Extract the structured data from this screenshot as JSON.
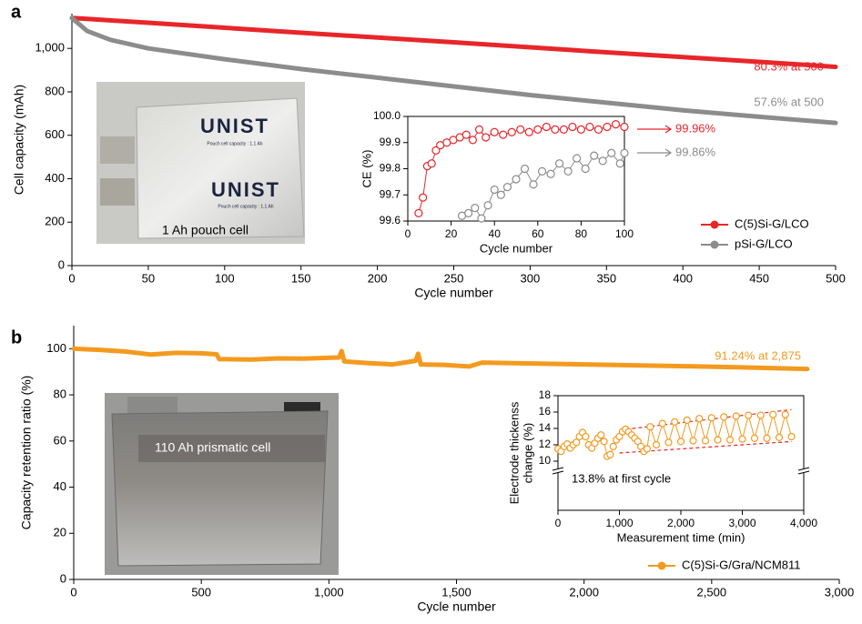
{
  "chart_data": [
    {
      "type": "line",
      "panel": "a",
      "xlabel": "Cycle number",
      "ylabel": "Cell capacity (mAh)",
      "xlim": [
        0,
        500
      ],
      "ylim": [
        0,
        1160
      ],
      "xticks": [
        0,
        50,
        100,
        150,
        200,
        250,
        300,
        350,
        400,
        450,
        500
      ],
      "yticks": [
        0,
        200,
        400,
        600,
        800,
        {
          "value": 1000,
          "label": "1,000"
        }
      ],
      "x": [
        0,
        10,
        25,
        50,
        100,
        150,
        200,
        250,
        300,
        350,
        400,
        450,
        500
      ],
      "series": [
        {
          "name": "C(5)Si-G/LCO",
          "color": "#e8262a",
          "values": [
            1140,
            1136,
            1129,
            1118,
            1095,
            1072,
            1050,
            1028,
            1005,
            982,
            960,
            938,
            915
          ]
        },
        {
          "name": "pSi-G/LCO",
          "color": "#8c8c8c",
          "values": [
            1140,
            1080,
            1040,
            1000,
            950,
            905,
            865,
            825,
            785,
            750,
            715,
            685,
            657
          ]
        }
      ],
      "legend": "lower right",
      "annotations": [
        {
          "text": "80.3% at 500",
          "color": "#e8262a"
        },
        {
          "text": "57.6% at 500",
          "color": "#8c8c8c"
        }
      ]
    },
    {
      "type": "line",
      "markers": true,
      "xlabel": "Cycle number",
      "ylabel": "CE (%)",
      "xlim": [
        0,
        100
      ],
      "ylim": [
        99.6,
        100.0
      ],
      "xticks": [
        0,
        20,
        40,
        60,
        80,
        100
      ],
      "yticks": [
        99.6,
        99.7,
        99.8,
        99.9,
        {
          "value": 100,
          "label": "100.0"
        }
      ],
      "series": [
        {
          "color": "#e8262a",
          "x": [
            5,
            7,
            9,
            11,
            13,
            15,
            18,
            21,
            24,
            27,
            30,
            33,
            36,
            40,
            44,
            48,
            52,
            56,
            60,
            64,
            68,
            72,
            76,
            80,
            84,
            88,
            92,
            96,
            100
          ],
          "values": [
            99.63,
            99.69,
            99.81,
            99.82,
            99.87,
            99.89,
            99.9,
            99.91,
            99.92,
            99.93,
            99.91,
            99.95,
            99.92,
            99.94,
            99.93,
            99.94,
            99.95,
            99.94,
            99.95,
            99.96,
            99.95,
            99.95,
            99.96,
            99.95,
            99.96,
            99.95,
            99.96,
            99.97,
            99.96
          ]
        },
        {
          "color": "#8c8c8c",
          "x": [
            25,
            28,
            31,
            34,
            37,
            40,
            43,
            46,
            50,
            54,
            58,
            62,
            66,
            70,
            74,
            78,
            82,
            86,
            90,
            94,
            98,
            100
          ],
          "values": [
            99.62,
            99.63,
            99.65,
            99.61,
            99.66,
            99.72,
            99.7,
            99.73,
            99.76,
            99.8,
            99.74,
            99.79,
            99.78,
            99.82,
            99.79,
            99.84,
            99.8,
            99.85,
            99.83,
            99.86,
            99.82,
            99.86
          ]
        }
      ],
      "annotations": [
        {
          "text": "99.96%",
          "color": "#e8262a"
        },
        {
          "text": "99.86%",
          "color": "#8c8c8c"
        }
      ]
    },
    {
      "type": "line",
      "panel": "b",
      "xlabel": "Cycle number",
      "ylabel": "Capacity retention ratio (%)",
      "xlim": [
        0,
        3000
      ],
      "ylim": [
        0,
        110
      ],
      "xticks": [
        0,
        500,
        {
          "value": 1000,
          "label": "1,000"
        },
        {
          "value": 1500,
          "label": "1,500"
        },
        {
          "value": 2000,
          "label": "2,000"
        },
        {
          "value": 2500,
          "label": "2,500"
        },
        {
          "value": 3000,
          "label": "3,000"
        }
      ],
      "yticks": [
        0,
        20,
        40,
        60,
        80,
        100
      ],
      "x": [
        0,
        100,
        200,
        300,
        400,
        500,
        560,
        570,
        700,
        800,
        900,
        1040,
        1050,
        1060,
        1150,
        1250,
        1340,
        1350,
        1360,
        1450,
        1550,
        1600,
        1800,
        2000,
        2200,
        2400,
        2600,
        2875
      ],
      "series": [
        {
          "name": "C(5)Si-G/Gra/NCM811",
          "color": "#f39a1e",
          "values": [
            100,
            99.5,
            98.8,
            97.5,
            98.2,
            98,
            97.6,
            95.5,
            95.3,
            95.8,
            95.7,
            96.2,
            99,
            94.5,
            93.8,
            93.2,
            94.8,
            97.8,
            93.2,
            93.0,
            92.3,
            94,
            93.6,
            93.2,
            92.8,
            92.4,
            92.0,
            91.24
          ]
        }
      ],
      "legend": "lower right",
      "annotations": [
        {
          "text": "91.24% at 2,875",
          "color": "#f39a1e"
        }
      ]
    },
    {
      "type": "line",
      "markers": true,
      "xlabel": "Measurement time (min)",
      "ylabel": [
        "Electrode thickenss",
        "change (%)"
      ],
      "xlim": [
        0,
        4000
      ],
      "ylim": [
        4,
        18
      ],
      "xticks": [
        0,
        {
          "value": 1000,
          "label": "1,000"
        },
        {
          "value": 2000,
          "label": "2,000"
        },
        {
          "value": 3000,
          "label": "3,000"
        },
        {
          "value": 4000,
          "label": "4,000"
        }
      ],
      "yticks": [
        10,
        12,
        14,
        16,
        18
      ],
      "series": [
        {
          "color": "#f39a1e",
          "x": [
            0,
            50,
            100,
            150,
            200,
            250,
            300,
            350,
            400,
            450,
            500,
            550,
            600,
            650,
            700,
            750,
            800,
            850,
            900,
            950,
            1000,
            1050,
            1100,
            1150,
            1200,
            1250,
            1300,
            1350,
            1400,
            1450,
            1500,
            1600,
            1700,
            1800,
            1900,
            2000,
            2100,
            2200,
            2300,
            2400,
            2500,
            2600,
            2700,
            2800,
            2900,
            3000,
            3100,
            3200,
            3300,
            3400,
            3500,
            3600,
            3700,
            3800
          ],
          "values": [
            11.5,
            11.2,
            11.8,
            12.1,
            11.6,
            12.0,
            12.3,
            13.0,
            13.5,
            13.0,
            12.0,
            11.6,
            12.2,
            12.8,
            13.2,
            12.4,
            10.6,
            10.8,
            11.8,
            12.6,
            13.0,
            13.6,
            13.9,
            13.6,
            13.2,
            12.8,
            12.4,
            11.8,
            11.2,
            11.5,
            14.2,
            12.0,
            14.6,
            12.3,
            14.8,
            12.4,
            15.0,
            12.5,
            15.2,
            12.5,
            15.3,
            12.6,
            15.4,
            12.6,
            15.5,
            12.7,
            15.6,
            12.8,
            15.6,
            12.8,
            15.7,
            12.9,
            15.7,
            13.0
          ]
        }
      ],
      "envelopes": [
        {
          "color": "#e8262a",
          "x": [
            1000,
            3800
          ],
          "values": [
            13.8,
            16.3
          ]
        },
        {
          "color": "#e8262a",
          "x": [
            1000,
            3800
          ],
          "values": [
            11.0,
            12.4
          ]
        }
      ],
      "annotations": [
        {
          "text": "13.8% at first cycle",
          "color": "#000000"
        }
      ]
    }
  ],
  "photos": [
    {
      "caption": "1 Ah pouch cell",
      "texts": [
        "UNIST",
        "Pouch cell capacity : 1.1 Ah",
        "UNIST",
        "Pouch cell capacity : 1.1 Ah"
      ]
    },
    {
      "caption": "110 Ah prismatic cell"
    }
  ]
}
